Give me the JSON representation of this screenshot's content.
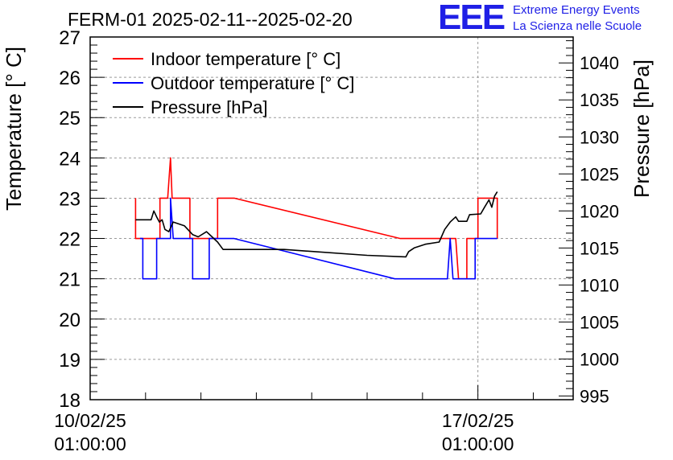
{
  "chart_data": {
    "type": "line",
    "title": "FERM-01 2025-02-11--2025-02-20",
    "ylabel": "Temperature [° C]",
    "y2label": "Pressure [hPa]",
    "ylim": [
      18,
      27
    ],
    "y2lim": [
      994.5,
      1043.5
    ],
    "xlim": [
      0.0,
      8.72
    ],
    "grid": true,
    "legend_position": "top-left",
    "x_ticks": [
      {
        "x": 0,
        "label": [
          "10/02/25",
          "01:00:00"
        ]
      },
      {
        "x": 7,
        "label": [
          "17/02/25",
          "01:00:00"
        ]
      }
    ],
    "y_ticks": [
      18,
      19,
      20,
      21,
      22,
      23,
      24,
      25,
      26,
      27
    ],
    "y2_ticks": [
      995,
      1000,
      1005,
      1010,
      1015,
      1020,
      1025,
      1030,
      1035,
      1040
    ],
    "series": [
      {
        "name": "Indoor temperature [° C]",
        "axis": "left",
        "color": "#ff0000",
        "points": [
          [
            0.82,
            23.0
          ],
          [
            0.82,
            22.0
          ],
          [
            1.26,
            22.0
          ],
          [
            1.26,
            23.0
          ],
          [
            1.4,
            23.0
          ],
          [
            1.45,
            24.0
          ],
          [
            1.48,
            23.0
          ],
          [
            1.8,
            23.0
          ],
          [
            1.8,
            22.0
          ],
          [
            2.3,
            22.0
          ],
          [
            2.3,
            23.0
          ],
          [
            2.6,
            23.0
          ],
          [
            5.6,
            22.0
          ],
          [
            6.6,
            22.0
          ],
          [
            6.65,
            21.0
          ],
          [
            6.8,
            21.0
          ],
          [
            6.8,
            22.0
          ],
          [
            7.0,
            22.0
          ],
          [
            7.0,
            23.0
          ],
          [
            7.35,
            23.0
          ],
          [
            7.35,
            22.0
          ]
        ]
      },
      {
        "name": "Outdoor temperature [° C]",
        "axis": "left",
        "color": "#0000ff",
        "points": [
          [
            0.9,
            22.0
          ],
          [
            0.95,
            22.0
          ],
          [
            0.95,
            21.0
          ],
          [
            1.2,
            21.0
          ],
          [
            1.2,
            22.0
          ],
          [
            1.45,
            22.0
          ],
          [
            1.45,
            23.0
          ],
          [
            1.5,
            22.0
          ],
          [
            1.85,
            22.0
          ],
          [
            1.85,
            21.0
          ],
          [
            2.15,
            21.0
          ],
          [
            2.15,
            22.0
          ],
          [
            2.6,
            22.0
          ],
          [
            5.5,
            21.0
          ],
          [
            6.45,
            21.0
          ],
          [
            6.5,
            22.0
          ],
          [
            6.55,
            21.0
          ],
          [
            6.95,
            21.0
          ],
          [
            6.95,
            22.0
          ],
          [
            7.35,
            22.0
          ]
        ]
      },
      {
        "name": "Pressure [hPa]",
        "axis": "right",
        "color": "#000000",
        "points": [
          [
            0.82,
            1018.8
          ],
          [
            1.1,
            1018.8
          ],
          [
            1.15,
            1020.0
          ],
          [
            1.2,
            1019.2
          ],
          [
            1.25,
            1018.5
          ],
          [
            1.3,
            1018.8
          ],
          [
            1.35,
            1017.5
          ],
          [
            1.42,
            1017.2
          ],
          [
            1.5,
            1018.5
          ],
          [
            1.7,
            1018.0
          ],
          [
            1.85,
            1016.8
          ],
          [
            1.95,
            1016.5
          ],
          [
            2.1,
            1017.2
          ],
          [
            2.2,
            1016.5
          ],
          [
            2.3,
            1015.8
          ],
          [
            2.4,
            1014.8
          ],
          [
            3.5,
            1014.8
          ],
          [
            5.0,
            1014.0
          ],
          [
            5.7,
            1013.8
          ],
          [
            5.75,
            1014.5
          ],
          [
            5.85,
            1015.0
          ],
          [
            6.05,
            1015.5
          ],
          [
            6.3,
            1015.8
          ],
          [
            6.4,
            1017.5
          ],
          [
            6.5,
            1018.5
          ],
          [
            6.6,
            1019.2
          ],
          [
            6.65,
            1018.6
          ],
          [
            6.8,
            1018.6
          ],
          [
            6.85,
            1019.5
          ],
          [
            7.05,
            1019.6
          ],
          [
            7.12,
            1020.5
          ],
          [
            7.2,
            1021.5
          ],
          [
            7.25,
            1020.5
          ],
          [
            7.3,
            1022.0
          ],
          [
            7.35,
            1022.6
          ]
        ]
      }
    ]
  },
  "logo": {
    "mark": "EEE",
    "line1": "Extreme Energy Events",
    "line2": "La Scienza nelle Scuole"
  }
}
